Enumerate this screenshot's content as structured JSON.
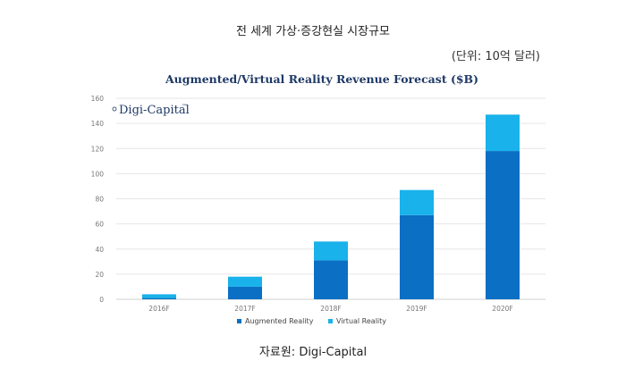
{
  "heading": "전 세계 가상·증강현실 시장규모",
  "unit_note": "(단위: 10억 달러)",
  "source_note": "자료원: Digi-Capital",
  "brand": "Digi-Capital",
  "brand_tm": "™",
  "colors": {
    "augmented": "#0b6fc4",
    "virtual": "#19b2ea",
    "title": "#1f3a66",
    "brand": "#1f3a66",
    "grid": "#e6e6e6",
    "tick": "#777777"
  },
  "chart_data": {
    "type": "bar",
    "stacked": true,
    "title": "Augmented/Virtual Reality Revenue Forecast ($B)",
    "categories": [
      "2016F",
      "2017F",
      "2018F",
      "2019F",
      "2020F"
    ],
    "series": [
      {
        "name": "Augmented Reality",
        "values": [
          1,
          10,
          31,
          67,
          118
        ]
      },
      {
        "name": "Virtual Reality",
        "values": [
          3,
          8,
          15,
          20,
          29
        ]
      }
    ],
    "yticks": [
      0,
      20,
      40,
      60,
      80,
      100,
      120,
      140,
      160
    ],
    "ylim": [
      0,
      160
    ],
    "xlabel": "",
    "ylabel": "",
    "legend": "bottom"
  }
}
